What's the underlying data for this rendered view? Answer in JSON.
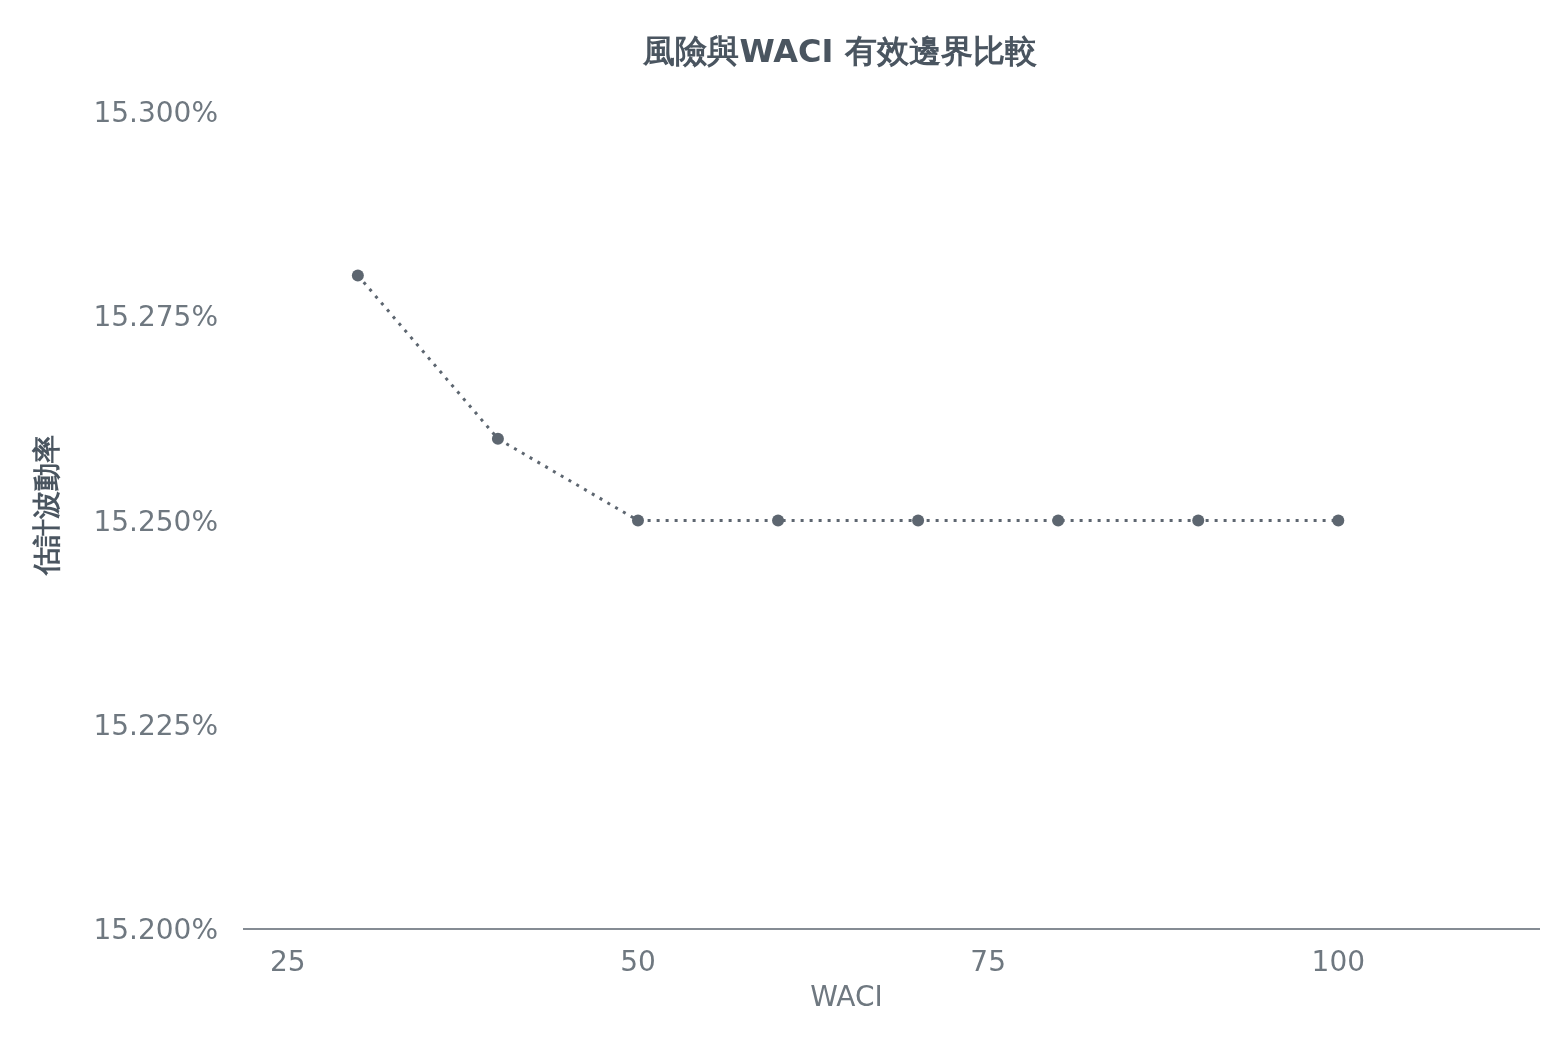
{
  "chart_data": {
    "type": "line",
    "title": "風險與WACI 有效邊界比較",
    "xlabel": "WACI",
    "ylabel": "估計波動率",
    "x": [
      30,
      40,
      50,
      60,
      70,
      80,
      90,
      100
    ],
    "series": [
      {
        "color": "#5d6670",
        "values": [
          15.28,
          15.26,
          15.25,
          15.25,
          15.25,
          15.25,
          15.25,
          15.25
        ]
      }
    ],
    "xlim": [
      21.8,
      114.4
    ],
    "xticks": [
      25,
      50,
      75,
      100
    ],
    "ylim": [
      15.2,
      15.3
    ],
    "yticks": [
      {
        "value": 15.2,
        "label": "15.200%"
      },
      {
        "value": 15.225,
        "label": "15.225%"
      },
      {
        "value": 15.25,
        "label": "15.250%"
      },
      {
        "value": 15.275,
        "label": "15.275%"
      },
      {
        "value": 15.3,
        "label": "15.300%"
      }
    ],
    "grid": false,
    "marker": "circle",
    "line_style": "dotted"
  }
}
